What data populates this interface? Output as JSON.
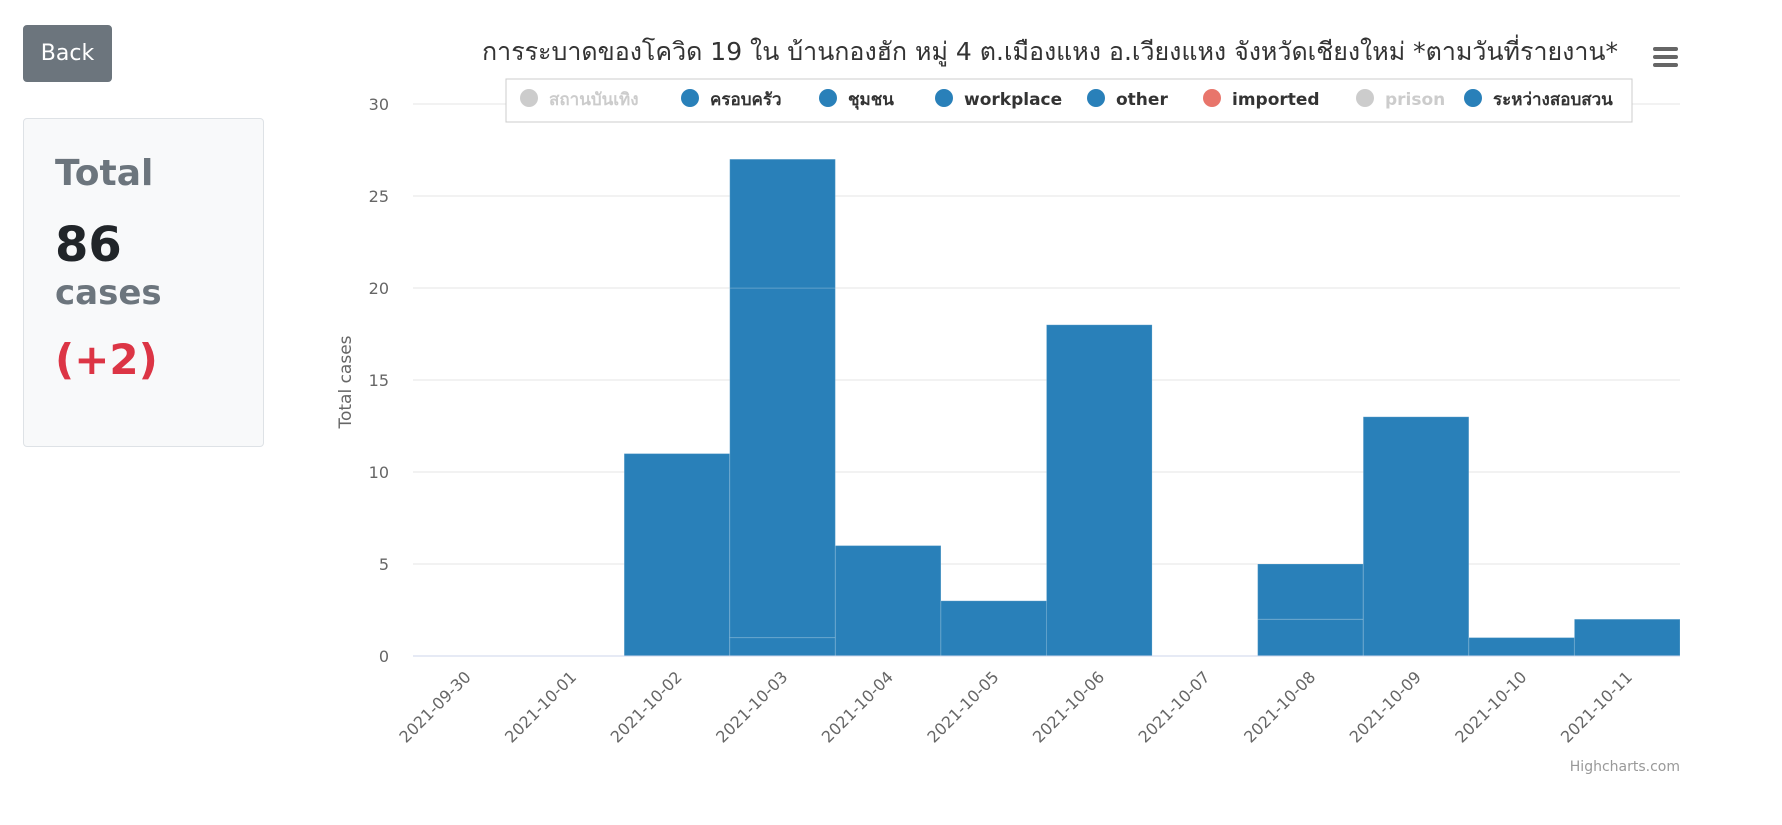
{
  "back_label": "Back",
  "summary": {
    "label": "Total",
    "count": "86",
    "unit": "cases",
    "delta": "(+2)"
  },
  "credit": "Highcharts.com",
  "chart_data": {
    "type": "bar",
    "stacked": true,
    "title": "การระบาดของโควิด 19 ใน บ้านกองฮัก หมู่ 4 ต.เมืองแหง อ.เวียงแหง จังหวัดเชียงใหม่ *ตามวันที่รายงาน*",
    "xlabel": "",
    "ylabel": "Total cases",
    "ylim": [
      0,
      30
    ],
    "yticks": [
      0,
      5,
      10,
      15,
      20,
      25,
      30
    ],
    "grid": true,
    "legend_position": "top",
    "categories": [
      "2021-09-30",
      "2021-10-01",
      "2021-10-02",
      "2021-10-03",
      "2021-10-04",
      "2021-10-05",
      "2021-10-06",
      "2021-10-07",
      "2021-10-08",
      "2021-10-09",
      "2021-10-10",
      "2021-10-11"
    ],
    "series": [
      {
        "name": "สถานบันเทิง",
        "color": "#cccccc",
        "visible": false,
        "values": [
          0,
          0,
          0,
          0,
          0,
          0,
          0,
          0,
          0,
          0,
          0,
          0
        ]
      },
      {
        "name": "ครอบครัว",
        "color": "#2980b9",
        "visible": true,
        "values": [
          0,
          0,
          0,
          7,
          0,
          0,
          0,
          0,
          3,
          0,
          0,
          0
        ]
      },
      {
        "name": "ชุมชน",
        "color": "#2980b9",
        "visible": true,
        "values": [
          0,
          0,
          11,
          19,
          6,
          3,
          18,
          0,
          2,
          13,
          1,
          2
        ]
      },
      {
        "name": "workplace",
        "color": "#2980b9",
        "visible": true,
        "values": [
          0,
          0,
          0,
          0,
          0,
          0,
          0,
          0,
          0,
          0,
          0,
          0
        ]
      },
      {
        "name": "other",
        "color": "#2980b9",
        "visible": true,
        "values": [
          0,
          0,
          0,
          0,
          0,
          0,
          0,
          0,
          0,
          0,
          0,
          0
        ]
      },
      {
        "name": "imported",
        "color": "#e8756b",
        "visible": true,
        "values": [
          0,
          0,
          0,
          0,
          0,
          0,
          0,
          0,
          0,
          0,
          0,
          0
        ]
      },
      {
        "name": "prison",
        "color": "#cccccc",
        "visible": false,
        "values": [
          0,
          0,
          0,
          0,
          0,
          0,
          0,
          0,
          0,
          0,
          0,
          0
        ]
      },
      {
        "name": "ระหว่างสอบสวน",
        "color": "#2980b9",
        "visible": true,
        "values": [
          0,
          0,
          0,
          1,
          0,
          0,
          0,
          0,
          0,
          0,
          0,
          0
        ]
      }
    ]
  }
}
